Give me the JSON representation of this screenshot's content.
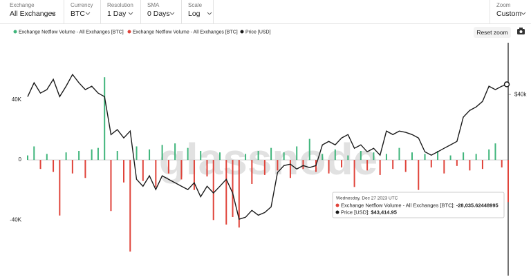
{
  "toolbar": {
    "controls": [
      {
        "label": "Exchange",
        "value": "All Exchanges"
      },
      {
        "label": "Currency",
        "value": "BTC"
      },
      {
        "label": "Resolution",
        "value": "1 Day"
      },
      {
        "label": "SMA",
        "value": "0 Days"
      },
      {
        "label": "Scale",
        "value": "Log"
      }
    ],
    "zoom": {
      "label": "Zoom",
      "value": "Custom"
    },
    "reset_zoom": "Reset zoom"
  },
  "chart_data": {
    "type": "combo",
    "watermark": "glassnode",
    "ylim": [
      -77000,
      78000
    ],
    "yticks": [
      {
        "value": 40000,
        "label": "40K"
      },
      0,
      {
        "value": -40000,
        "label": "-40K"
      }
    ],
    "y2lim": [
      9300,
      60700
    ],
    "y2scale": "log",
    "y2ticks": [
      {
        "value": 40000,
        "label": "$40k"
      }
    ],
    "series": [
      {
        "name": "Exchange Netflow Volume - All Exchanges [BTC]",
        "type": "bar",
        "color": "#3fb57b",
        "negative_color": "#e0433a",
        "values": [
          3000,
          9000,
          -6000,
          4000,
          -8000,
          -37000,
          5000,
          -9000,
          6000,
          -12000,
          7000,
          8000,
          55000,
          -34000,
          6000,
          -15000,
          -61000,
          9000,
          -14000,
          7000,
          -18000,
          10000,
          -9000,
          11000,
          -13000,
          8000,
          -20000,
          6000,
          -11000,
          -40000,
          5000,
          -43000,
          -38000,
          -45000,
          4000,
          -16000,
          6000,
          -10000,
          8000,
          -7000,
          5000,
          -12000,
          9000,
          -6000,
          14000,
          -8000,
          4000,
          -9000,
          7000,
          -5000,
          3000,
          -18000,
          6000,
          -7000,
          5000,
          -10000,
          4000,
          -6000,
          8000,
          -8000,
          5000,
          -20000,
          4000,
          -5000,
          6000,
          -9000,
          3000,
          -4000,
          5000,
          -7000,
          4000,
          -6000,
          7000,
          11000,
          -5000,
          -28035.62448995
        ]
      },
      {
        "name": "Price [USD]",
        "type": "line",
        "axis": "y2",
        "color": "#1a1a1a",
        "values": [
          39300,
          43960,
          40450,
          41590,
          45200,
          39300,
          42760,
          47000,
          43960,
          41590,
          42760,
          40450,
          39300,
          28970,
          30140,
          28190,
          29800,
          20200,
          19100,
          20780,
          18600,
          20780,
          20200,
          19650,
          19100,
          18600,
          19650,
          17560,
          19100,
          18090,
          19100,
          20200,
          18090,
          14650,
          14880,
          15730,
          15130,
          15460,
          16170,
          21350,
          22570,
          22830,
          21950,
          22570,
          22200,
          22570,
          26660,
          27410,
          26660,
          28190,
          28970,
          25930,
          26660,
          25220,
          25930,
          24530,
          29800,
          28970,
          29800,
          29480,
          28970,
          28190,
          25220,
          24530,
          25220,
          25930,
          26660,
          27410,
          33330,
          35200,
          36190,
          37820,
          42760,
          41590,
          42760,
          43414.95
        ]
      }
    ]
  },
  "tooltip": {
    "date": "Wednesday, Dec 27 2023 UTC",
    "lines": [
      {
        "label": "Exchange Netflow Volume - All Exchanges [BTC]:",
        "value": "-28,035.62448995"
      },
      {
        "label": "Price [USD]:",
        "value": "$43,414.95"
      }
    ]
  }
}
